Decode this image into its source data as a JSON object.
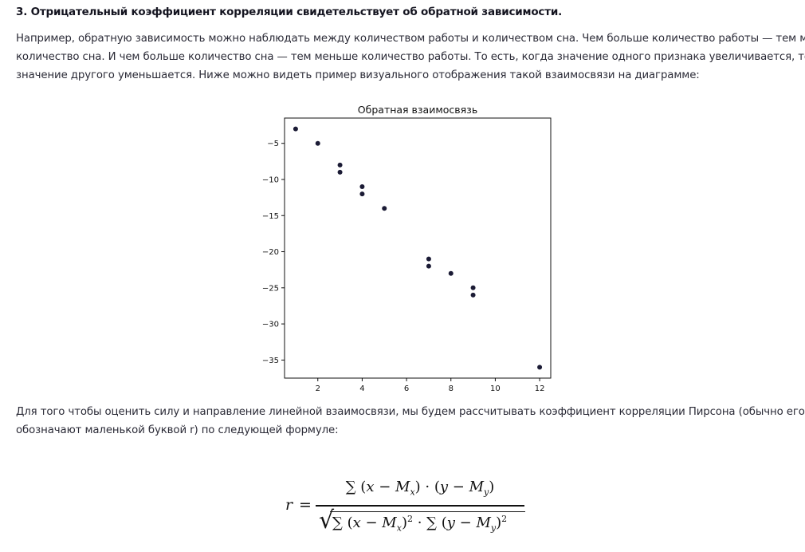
{
  "heading": "3. Отрицательный коэффициент корреляции свидетельствует об обратной зависимости.",
  "paragraph1": [
    "Например, обратную зависимость можно наблюдать между количеством работы и количеством сна. Чем больше количество работы — тем меньше",
    "количество сна. И чем больше количество сна — тем меньше количество работы. То есть, когда значение одного признака увеличивается, то",
    "значение другого уменьшается. Ниже можно видеть пример визуального отображения такой взаимосвязи на диаграмме:"
  ],
  "chart_data": {
    "type": "scatter",
    "title": "Обратная взаимосвязь",
    "xlabel": "",
    "ylabel": "",
    "xlim": [
      0.5,
      12.5
    ],
    "ylim": [
      -37.5,
      -1.5
    ],
    "x_ticks": [
      2,
      4,
      6,
      8,
      10,
      12
    ],
    "y_ticks": [
      -5,
      -10,
      -15,
      -20,
      -25,
      -30,
      -35
    ],
    "x_tick_labels": [
      "2",
      "4",
      "6",
      "8",
      "10",
      "12"
    ],
    "y_tick_labels": [
      "−5",
      "−10",
      "−15",
      "−20",
      "−25",
      "−30",
      "−35"
    ],
    "grid": false,
    "color": "#1b1b35",
    "points": [
      {
        "x": 1,
        "y": -3
      },
      {
        "x": 2,
        "y": -5
      },
      {
        "x": 3,
        "y": -8
      },
      {
        "x": 3,
        "y": -9
      },
      {
        "x": 4,
        "y": -11
      },
      {
        "x": 4,
        "y": -12
      },
      {
        "x": 5,
        "y": -14
      },
      {
        "x": 7,
        "y": -21
      },
      {
        "x": 7,
        "y": -22
      },
      {
        "x": 8,
        "y": -23
      },
      {
        "x": 9,
        "y": -25
      },
      {
        "x": 9,
        "y": -26
      },
      {
        "x": 12,
        "y": -36
      }
    ]
  },
  "paragraph2": [
    "Для того чтобы оценить силу и направление линейной взаимосвязи, мы будем рассчитывать коэффициент корреляции Пирсона (обычно его",
    "обозначают маленькой буквой r) по следующей формуле:"
  ],
  "formula": {
    "lhs": "r",
    "eq": "=",
    "numerator": "∑ (x − Mₓ) · (y − M_y)",
    "denominator": "√(∑ (x − Mₓ)² · ∑ (y − M_y)²)"
  }
}
